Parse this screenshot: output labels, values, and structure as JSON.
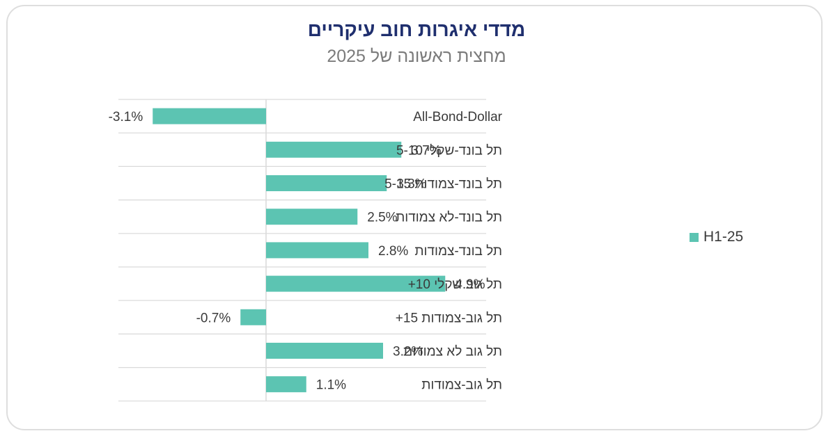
{
  "chart_data": {
    "type": "bar",
    "orientation": "horizontal",
    "title": "מדדי איגרות חוב עיקריים",
    "subtitle": "מחצית ראשונה של 2025",
    "categories": [
      "All-Bond-Dollar",
      "תל בונד-שקלי 5-10",
      "תל בונד-צמודות 5-15",
      "תל בונד-לא צמודות",
      "תל בונד-צמודות",
      "תל גוב שקלי 10+",
      "תל גוב-צמודות 15+",
      "תל גוב לא צמודות",
      "תל גוב-צמודות"
    ],
    "series": [
      {
        "name": "H1-25",
        "values": [
          -3.1,
          3.7,
          3.3,
          2.5,
          2.8,
          4.9,
          -0.7,
          3.2,
          1.1
        ],
        "labels": [
          "-3.1%",
          "3.7%",
          "3.3%",
          "2.5%",
          "2.8%",
          "4.9%",
          "-0.7%",
          "3.2%",
          "1.1%"
        ]
      }
    ],
    "xlim": [
      -4,
      6
    ],
    "grid": true,
    "legend_position": "right",
    "colors": {
      "bar": "#5cc4b2",
      "title": "#1f2f6e",
      "subtitle": "#7b7b7b",
      "grid": "#d9d9d9"
    }
  }
}
